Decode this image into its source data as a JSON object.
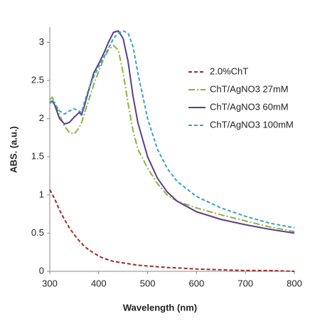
{
  "chart_data": {
    "type": "line",
    "x_label": "Wavelength (nm)",
    "y_label": "ABS. (a.u.)",
    "x": [
      300,
      305,
      310,
      320,
      330,
      340,
      350,
      360,
      365,
      370,
      380,
      390,
      400,
      410,
      420,
      430,
      440,
      450,
      460,
      470,
      480,
      500,
      520,
      540,
      560,
      600,
      650,
      700,
      750,
      800
    ],
    "series": [
      {
        "name": "2.0%ChT",
        "color": "#9b2d2a",
        "style": "dashed",
        "values": [
          1.07,
          1.01,
          0.95,
          0.8,
          0.68,
          0.57,
          0.48,
          0.4,
          0.37,
          0.33,
          0.28,
          0.24,
          0.2,
          0.17,
          0.15,
          0.13,
          0.12,
          0.11,
          0.1,
          0.09,
          0.08,
          0.07,
          0.06,
          0.05,
          0.045,
          0.03,
          0.02,
          0.01,
          0.01,
          0.0
        ]
      },
      {
        "name": "ChT/AgNO3 27mM",
        "color": "#8db33f",
        "style": "dashdot",
        "values": [
          2.25,
          2.28,
          2.22,
          2.05,
          1.9,
          1.82,
          1.8,
          1.88,
          1.95,
          2.05,
          2.25,
          2.45,
          2.62,
          2.78,
          2.9,
          2.96,
          2.9,
          2.6,
          2.2,
          1.85,
          1.6,
          1.35,
          1.15,
          1.0,
          0.92,
          0.83,
          0.74,
          0.66,
          0.58,
          0.52
        ]
      },
      {
        "name": "ChT/AgNO3 60mM",
        "color": "#5b3f8a",
        "style": "solid",
        "values": [
          2.2,
          2.23,
          2.18,
          2.0,
          1.93,
          1.95,
          2.02,
          2.08,
          2.05,
          2.15,
          2.38,
          2.6,
          2.72,
          2.85,
          3.0,
          3.13,
          3.15,
          3.05,
          2.75,
          2.3,
          1.95,
          1.5,
          1.22,
          1.04,
          0.92,
          0.78,
          0.68,
          0.61,
          0.55,
          0.5
        ]
      },
      {
        "name": "ChT/AgNO3 100mM",
        "color": "#3aa3c0",
        "style": "dashed",
        "values": [
          2.2,
          2.25,
          2.2,
          2.1,
          2.06,
          2.1,
          2.13,
          2.1,
          2.08,
          2.2,
          2.4,
          2.55,
          2.68,
          2.8,
          2.92,
          3.05,
          3.12,
          3.15,
          3.12,
          2.95,
          2.6,
          2.0,
          1.6,
          1.35,
          1.18,
          0.98,
          0.83,
          0.72,
          0.63,
          0.57
        ]
      }
    ],
    "xlim": [
      300,
      800
    ],
    "xticks": [
      300,
      400,
      500,
      600,
      700,
      800
    ],
    "ylim": [
      0,
      3.2
    ],
    "yticks": [
      0,
      0.5,
      1,
      1.5,
      2,
      2.5,
      3
    ],
    "grid": false,
    "legend": "upper right"
  }
}
